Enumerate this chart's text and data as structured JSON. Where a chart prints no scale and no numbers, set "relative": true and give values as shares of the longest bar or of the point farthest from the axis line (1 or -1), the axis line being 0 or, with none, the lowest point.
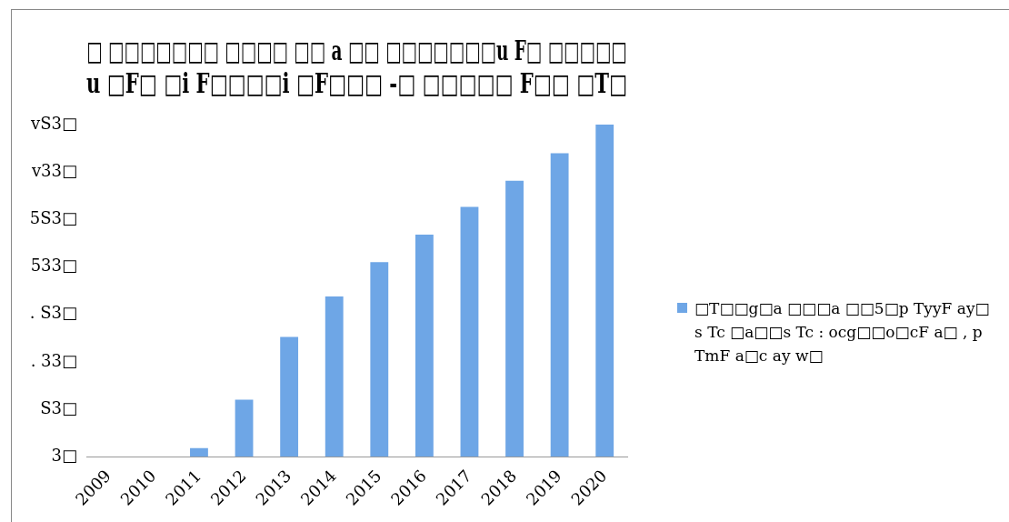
{
  "chart_data": {
    "type": "bar",
    "title": "□ □□□□□□□ □□□□ □□ a □□ □□□□□□□u F□ □□□□□\nu □F□ □i F□□□□i □F□□□ -□ □□□□□ F□□ □T□",
    "categories": [
      "2009",
      "2010",
      "2011",
      "2012",
      "2013",
      "2014",
      "2015",
      "2016",
      "2017",
      "2018",
      "2019",
      "2020"
    ],
    "series": [
      {
        "name": "□T□□g□a □□□a □□5□p TyyF ay□ s Tc □a□□s Tc : ocg□□o□cF a□ , p TmF a□c ay w□",
        "color": "#6ea6e6",
        "values": [
          0,
          0,
          0.026,
          0.172,
          0.361,
          0.483,
          0.586,
          0.669,
          0.752,
          0.831,
          0.914,
          1
        ]
      }
    ],
    "relative": true,
    "annotations": [
      "3□",
      "S3□",
      ". 33□",
      ". S3□",
      "533□",
      "5S3□",
      "v33□",
      "vS3□"
    ],
    "legend": "right"
  }
}
